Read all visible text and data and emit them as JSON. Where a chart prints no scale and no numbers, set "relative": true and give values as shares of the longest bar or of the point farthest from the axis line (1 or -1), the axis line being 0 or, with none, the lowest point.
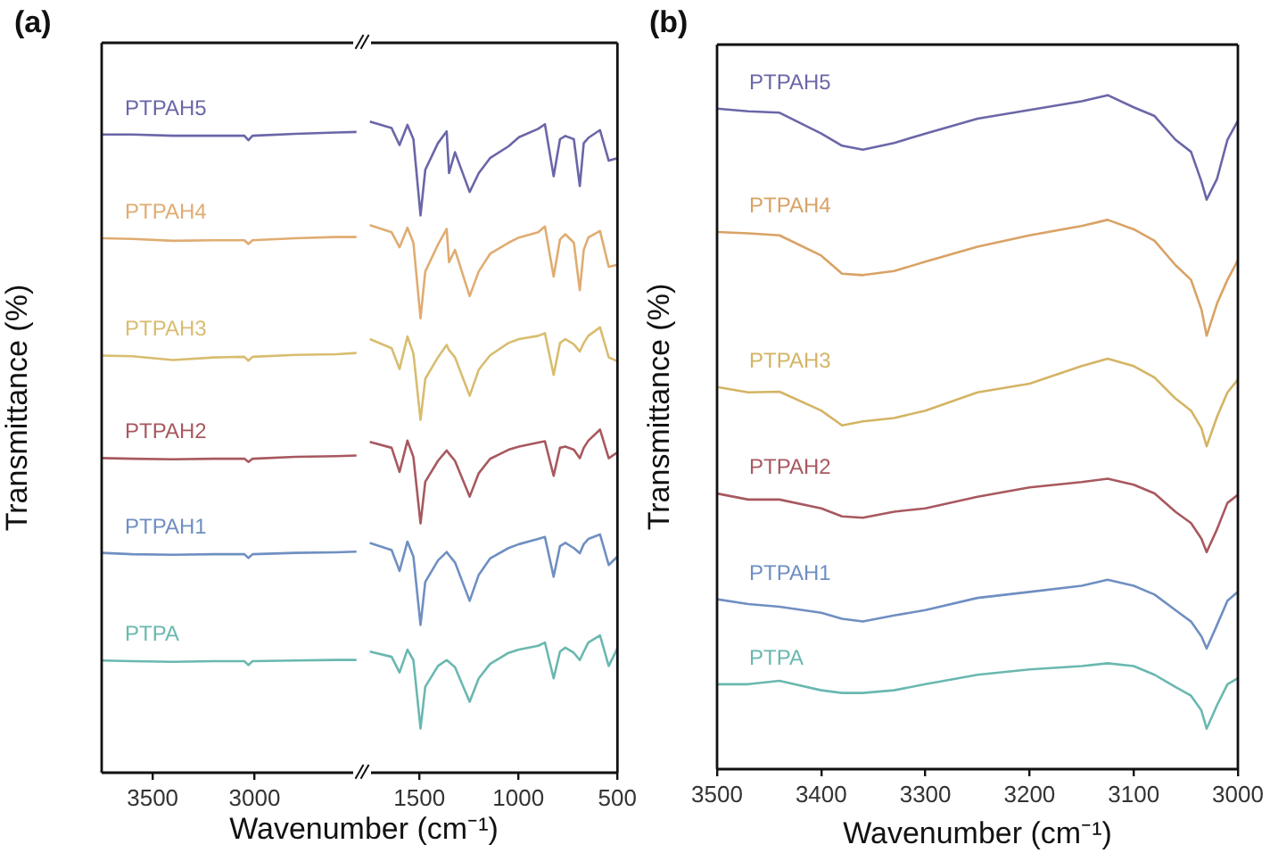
{
  "chart_data": [
    {
      "type": "line",
      "title": "(a)",
      "ylabel": "Transmittance (%)",
      "relative": true,
      "xlim": [
        3750,
        2490
      ],
      "xticks": [
        3500,
        3000
      ],
      "x": [
        3750,
        3600,
        3400,
        3200,
        3050,
        3030,
        3010,
        2800,
        2600,
        2500
      ],
      "series": [
        {
          "name": "PTPAH5",
          "color": "#6a66a8",
          "values": [
            0.996,
            0.996,
            0.994,
            0.994,
            0.994,
            0.987,
            0.994,
            0.997,
            0.999,
            1.0
          ]
        },
        {
          "name": "PTPAH4",
          "color": "#e0ac72",
          "values": [
            0.834,
            0.833,
            0.83,
            0.831,
            0.831,
            0.825,
            0.831,
            0.834,
            0.836,
            0.836
          ]
        },
        {
          "name": "PTPAH3",
          "color": "#d8bd70",
          "values": [
            0.651,
            0.65,
            0.644,
            0.648,
            0.649,
            0.643,
            0.649,
            0.652,
            0.653,
            0.655
          ]
        },
        {
          "name": "PTPAH2",
          "color": "#a8585f",
          "values": [
            0.491,
            0.49,
            0.489,
            0.49,
            0.49,
            0.485,
            0.49,
            0.493,
            0.494,
            0.495
          ]
        },
        {
          "name": "PTPAH1",
          "color": "#6f8fc2",
          "values": [
            0.343,
            0.341,
            0.34,
            0.341,
            0.341,
            0.335,
            0.341,
            0.343,
            0.344,
            0.345
          ]
        },
        {
          "name": "PTPA",
          "color": "#6ab8b0",
          "values": [
            0.175,
            0.174,
            0.173,
            0.174,
            0.174,
            0.168,
            0.174,
            0.175,
            0.176,
            0.176
          ]
        }
      ]
    },
    {
      "type": "line",
      "xlabel": "Wavenumber (cm⁻¹)",
      "relative": true,
      "xlim": [
        1780,
        500
      ],
      "xticks": [
        1500,
        1000,
        500
      ],
      "x": [
        1750,
        1640,
        1600,
        1560,
        1530,
        1494,
        1470,
        1406,
        1362,
        1350,
        1320,
        1246,
        1200,
        1143,
        1050,
        997,
        900,
        866,
        822,
        790,
        763,
        720,
        690,
        670,
        647,
        588,
        544,
        500
      ],
      "series": [
        {
          "color": "#6a66a8",
          "values": [
            1.0,
            0.99,
            0.964,
            0.995,
            0.973,
            0.856,
            0.926,
            0.967,
            0.985,
            0.921,
            0.953,
            0.892,
            0.921,
            0.944,
            0.962,
            0.976,
            0.989,
            0.996,
            0.916,
            0.973,
            0.978,
            0.973,
            0.901,
            0.967,
            0.975,
            0.987,
            0.94,
            0.944
          ]
        },
        {
          "color": "#e0ac72",
          "values": [
            0.841,
            0.83,
            0.807,
            0.837,
            0.814,
            0.698,
            0.77,
            0.811,
            0.835,
            0.784,
            0.803,
            0.732,
            0.77,
            0.797,
            0.814,
            0.822,
            0.83,
            0.839,
            0.762,
            0.819,
            0.827,
            0.814,
            0.741,
            0.803,
            0.822,
            0.832,
            0.777,
            0.78
          ]
        },
        {
          "color": "#d8bd70",
          "values": [
            0.666,
            0.652,
            0.62,
            0.67,
            0.644,
            0.542,
            0.605,
            0.638,
            0.657,
            0.649,
            0.638,
            0.579,
            0.619,
            0.641,
            0.66,
            0.666,
            0.671,
            0.675,
            0.611,
            0.66,
            0.666,
            0.658,
            0.647,
            0.66,
            0.671,
            0.684,
            0.638,
            0.632
          ]
        },
        {
          "color": "#a8585f",
          "values": [
            0.508,
            0.499,
            0.462,
            0.51,
            0.485,
            0.383,
            0.447,
            0.479,
            0.495,
            0.49,
            0.479,
            0.424,
            0.46,
            0.482,
            0.496,
            0.501,
            0.507,
            0.509,
            0.456,
            0.499,
            0.501,
            0.496,
            0.483,
            0.499,
            0.51,
            0.527,
            0.483,
            0.492
          ]
        },
        {
          "color": "#6f8fc2",
          "values": [
            0.353,
            0.342,
            0.31,
            0.355,
            0.332,
            0.227,
            0.293,
            0.326,
            0.339,
            0.334,
            0.323,
            0.264,
            0.304,
            0.329,
            0.345,
            0.351,
            0.359,
            0.362,
            0.301,
            0.348,
            0.353,
            0.345,
            0.337,
            0.351,
            0.359,
            0.366,
            0.319,
            0.332
          ]
        },
        {
          "color": "#6ab8b0",
          "values": [
            0.186,
            0.178,
            0.154,
            0.189,
            0.173,
            0.068,
            0.132,
            0.164,
            0.173,
            0.17,
            0.162,
            0.109,
            0.145,
            0.167,
            0.184,
            0.189,
            0.195,
            0.2,
            0.145,
            0.186,
            0.192,
            0.184,
            0.173,
            0.186,
            0.2,
            0.211,
            0.164,
            0.191
          ]
        }
      ]
    },
    {
      "type": "line",
      "title": "(b)",
      "xlabel": "Wavenumber (cm⁻¹)",
      "ylabel": "Transmittance (%)",
      "relative": true,
      "xlim": [
        3500,
        3000
      ],
      "xticks": [
        3500,
        3400,
        3300,
        3200,
        3100,
        3000
      ],
      "x": [
        3500,
        3470,
        3440,
        3400,
        3380,
        3360,
        3330,
        3300,
        3250,
        3200,
        3150,
        3125,
        3100,
        3080,
        3060,
        3045,
        3035,
        3030,
        3020,
        3010,
        3000
      ],
      "series": [
        {
          "name": "PTPAH5",
          "color": "#6a66a8",
          "values": [
            0.98,
            0.976,
            0.974,
            0.943,
            0.925,
            0.919,
            0.929,
            0.943,
            0.965,
            0.978,
            0.991,
            1.0,
            0.982,
            0.969,
            0.934,
            0.916,
            0.872,
            0.845,
            0.876,
            0.934,
            0.962
          ]
        },
        {
          "name": "PTPAH4",
          "color": "#d9a265",
          "values": [
            0.797,
            0.795,
            0.792,
            0.762,
            0.735,
            0.733,
            0.739,
            0.753,
            0.775,
            0.792,
            0.806,
            0.815,
            0.801,
            0.784,
            0.748,
            0.726,
            0.682,
            0.643,
            0.691,
            0.726,
            0.755
          ]
        },
        {
          "name": "PTPAH3",
          "color": "#d4b464",
          "values": [
            0.567,
            0.559,
            0.56,
            0.532,
            0.51,
            0.516,
            0.521,
            0.532,
            0.559,
            0.572,
            0.598,
            0.609,
            0.598,
            0.581,
            0.55,
            0.532,
            0.506,
            0.479,
            0.523,
            0.559,
            0.578
          ]
        },
        {
          "name": "PTPAH2",
          "color": "#a8585f",
          "values": [
            0.409,
            0.4,
            0.4,
            0.387,
            0.375,
            0.373,
            0.382,
            0.387,
            0.404,
            0.418,
            0.426,
            0.431,
            0.422,
            0.409,
            0.382,
            0.365,
            0.342,
            0.322,
            0.356,
            0.395,
            0.407
          ]
        },
        {
          "name": "PTPAH1",
          "color": "#6f8fc2",
          "values": [
            0.252,
            0.245,
            0.241,
            0.232,
            0.223,
            0.219,
            0.228,
            0.236,
            0.254,
            0.263,
            0.272,
            0.281,
            0.272,
            0.259,
            0.236,
            0.219,
            0.197,
            0.179,
            0.214,
            0.25,
            0.263
          ]
        },
        {
          "name": "PTPA",
          "color": "#6ab8b0",
          "values": [
            0.126,
            0.126,
            0.131,
            0.117,
            0.113,
            0.113,
            0.117,
            0.126,
            0.14,
            0.148,
            0.153,
            0.157,
            0.153,
            0.14,
            0.122,
            0.109,
            0.087,
            0.06,
            0.095,
            0.126,
            0.135
          ]
        }
      ]
    }
  ]
}
